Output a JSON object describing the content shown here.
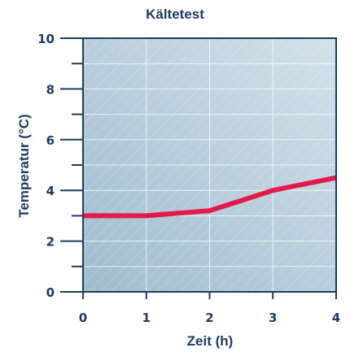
{
  "chart_data": {
    "type": "line",
    "title": "Kältetest",
    "xlabel": "Zeit (h)",
    "ylabel": "Temperatur (°C)",
    "xlim": [
      0,
      4
    ],
    "ylim": [
      0,
      10
    ],
    "x_ticks": [
      "0",
      "1",
      "2",
      "3",
      "4"
    ],
    "y_ticks": [
      "0",
      "2",
      "4",
      "6",
      "8",
      "10"
    ],
    "grid": true,
    "series": [
      {
        "x": [
          0,
          1,
          2,
          3,
          4
        ],
        "values": [
          3.0,
          3.0,
          3.2,
          4.0,
          4.5
        ]
      }
    ],
    "colors": {
      "line": "#e5194a",
      "axis": "#1f3b63",
      "plot_background": "#b7ccd8",
      "grid": "#ffffff"
    }
  }
}
